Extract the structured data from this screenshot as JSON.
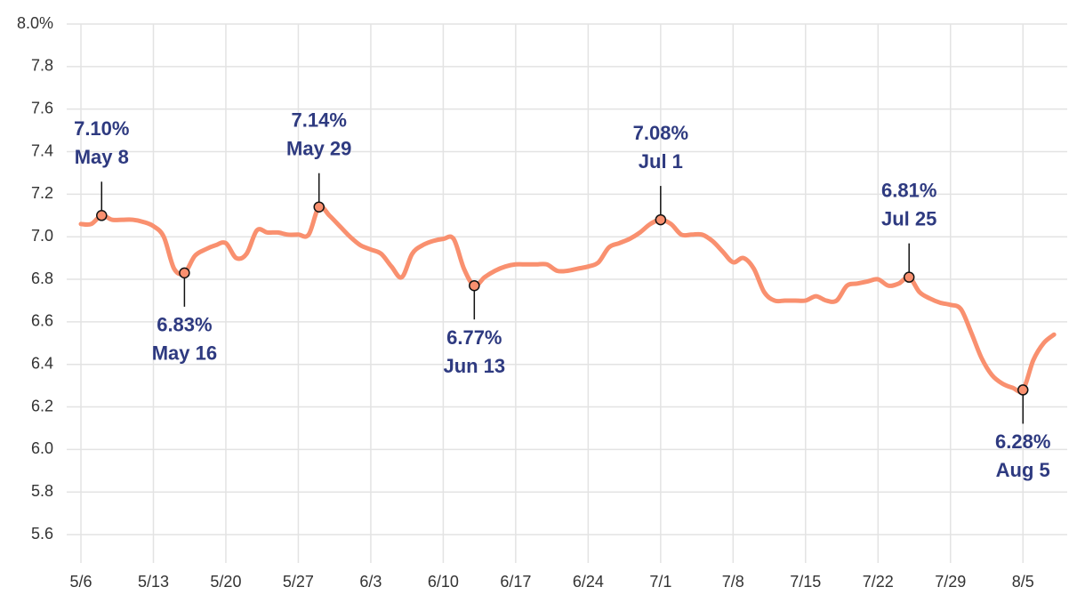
{
  "chart_data": {
    "type": "line",
    "categories": [
      "5/6",
      null,
      null,
      null,
      null,
      null,
      null,
      "5/13",
      null,
      null,
      null,
      null,
      null,
      null,
      "5/20",
      null,
      null,
      null,
      null,
      null,
      null,
      "5/27",
      null,
      null,
      null,
      null,
      null,
      null,
      "6/3",
      null,
      null,
      null,
      null,
      null,
      null,
      "6/10",
      null,
      null,
      null,
      null,
      null,
      null,
      "6/17",
      null,
      null,
      null,
      null,
      null,
      null,
      "6/24",
      null,
      null,
      null,
      null,
      null,
      null,
      "7/1",
      null,
      null,
      null,
      null,
      null,
      null,
      "7/8",
      null,
      null,
      null,
      null,
      null,
      null,
      "7/15",
      null,
      null,
      null,
      null,
      null,
      null,
      "7/22",
      null,
      null,
      null,
      null,
      null,
      null,
      "7/29",
      null,
      null,
      null,
      null,
      null,
      null,
      "8/5",
      null,
      null,
      null
    ],
    "values": [
      7.06,
      7.06,
      7.1,
      7.08,
      7.08,
      7.08,
      7.07,
      7.05,
      7.0,
      6.85,
      6.83,
      6.91,
      6.94,
      6.96,
      6.97,
      6.9,
      6.92,
      7.03,
      7.02,
      7.02,
      7.01,
      7.01,
      7.01,
      7.14,
      7.1,
      7.05,
      7.0,
      6.96,
      6.94,
      6.92,
      6.86,
      6.81,
      6.92,
      6.96,
      6.98,
      6.99,
      6.99,
      6.85,
      6.77,
      6.81,
      6.84,
      6.86,
      6.87,
      6.87,
      6.87,
      6.87,
      6.84,
      6.84,
      6.85,
      6.86,
      6.88,
      6.95,
      6.97,
      6.99,
      7.02,
      7.06,
      7.08,
      7.06,
      7.01,
      7.01,
      7.01,
      6.98,
      6.93,
      6.88,
      6.9,
      6.85,
      6.74,
      6.7,
      6.7,
      6.7,
      6.7,
      6.72,
      6.7,
      6.7,
      6.77,
      6.78,
      6.79,
      6.8,
      6.77,
      6.78,
      6.81,
      6.74,
      6.71,
      6.69,
      6.68,
      6.66,
      6.55,
      6.43,
      6.35,
      6.31,
      6.29,
      6.28,
      6.42,
      6.5,
      6.54
    ],
    "value_labels": [
      null,
      null,
      "7.10%",
      null,
      null,
      null,
      null,
      null,
      null,
      null,
      "6.83%",
      null,
      null,
      null,
      null,
      null,
      null,
      null,
      null,
      null,
      null,
      null,
      null,
      "7.14%",
      null,
      null,
      null,
      null,
      null,
      null,
      null,
      null,
      null,
      null,
      null,
      null,
      null,
      null,
      "6.77%",
      null,
      null,
      null,
      null,
      null,
      null,
      null,
      null,
      null,
      null,
      null,
      null,
      null,
      null,
      null,
      null,
      null,
      "7.08%",
      null,
      null,
      null,
      null,
      null,
      null,
      null,
      null,
      null,
      null,
      null,
      null,
      null,
      null,
      null,
      null,
      null,
      null,
      null,
      null,
      null,
      null,
      null,
      "6.81%",
      null,
      null,
      null,
      null,
      null,
      null,
      null,
      null,
      null,
      null,
      "6.28%",
      null,
      null,
      null
    ],
    "annotation_dates": [
      null,
      null,
      "May 8",
      null,
      null,
      null,
      null,
      null,
      null,
      null,
      "May 16",
      null,
      null,
      null,
      null,
      null,
      null,
      null,
      null,
      null,
      null,
      null,
      null,
      "May 29",
      null,
      null,
      null,
      null,
      null,
      null,
      null,
      null,
      null,
      null,
      null,
      null,
      null,
      null,
      "Jun 13",
      null,
      null,
      null,
      null,
      null,
      null,
      null,
      null,
      null,
      null,
      null,
      null,
      null,
      null,
      null,
      null,
      null,
      "Jul 1",
      null,
      null,
      null,
      null,
      null,
      null,
      null,
      null,
      null,
      null,
      null,
      null,
      null,
      null,
      null,
      null,
      null,
      null,
      null,
      null,
      null,
      null,
      null,
      "Jul 25",
      null,
      null,
      null,
      null,
      null,
      null,
      null,
      null,
      null,
      null,
      "Aug 5",
      null,
      null,
      null
    ],
    "color": "#f9906f",
    "annotation_color": "#2e3a80",
    "ylim": [
      5.5,
      8.0
    ],
    "yticks": [
      {
        "value": 5.6,
        "label": "5.6"
      },
      5.8,
      {
        "value": 6,
        "label": "6.0"
      },
      6.2,
      6.4,
      6.6,
      6.8,
      {
        "value": 7,
        "label": "7.0"
      },
      7.2,
      7.4,
      7.6,
      7.8,
      {
        "value": 8,
        "label": "8.0%"
      }
    ],
    "grid": true
  }
}
